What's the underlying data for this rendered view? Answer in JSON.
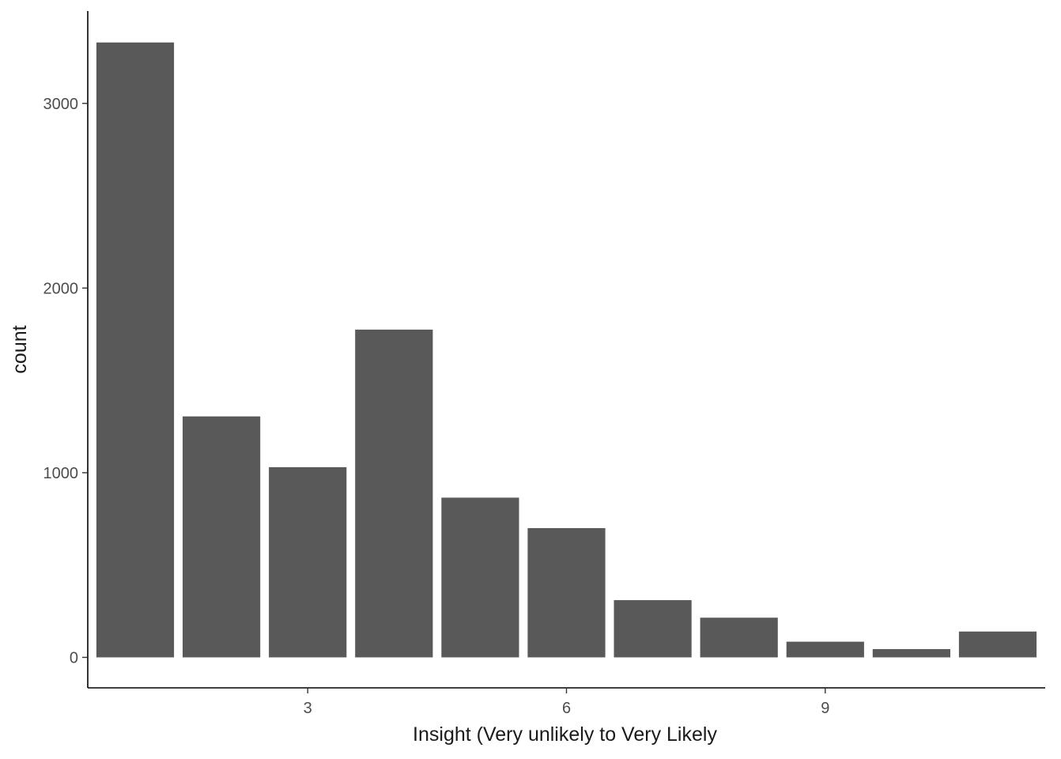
{
  "chart_data": {
    "type": "bar",
    "title": "",
    "xlabel": "Insight (Very unlikely to Very Likely",
    "ylabel": "count",
    "x": [
      1,
      2,
      3,
      4,
      5,
      6,
      7,
      8,
      9,
      10,
      11
    ],
    "values": [
      3330,
      1305,
      1030,
      1775,
      865,
      700,
      310,
      215,
      85,
      45,
      140
    ],
    "xticks": [
      3,
      6,
      9
    ],
    "xtick_labels": [
      "3",
      "6",
      "9"
    ],
    "yticks": [
      0,
      1000,
      2000,
      3000
    ],
    "ytick_labels": [
      "0",
      "1000",
      "2000",
      "3000"
    ],
    "xlim": [
      0.45,
      11.55
    ],
    "ylim": [
      -165,
      3500
    ],
    "grid": false,
    "bar_color": "#595959"
  }
}
